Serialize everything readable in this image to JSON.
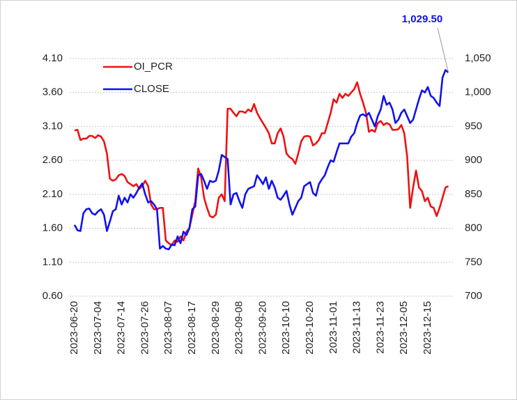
{
  "chart_data": {
    "type": "line",
    "categories": [
      "2023-06-20",
      null,
      null,
      null,
      null,
      null,
      null,
      null,
      "2023-07-04",
      null,
      null,
      null,
      null,
      null,
      null,
      null,
      "2023-07-14",
      null,
      null,
      null,
      null,
      null,
      null,
      null,
      "2023-07-26",
      null,
      null,
      null,
      null,
      null,
      null,
      null,
      "2023-08-07",
      null,
      null,
      null,
      null,
      null,
      null,
      null,
      "2023-08-17",
      null,
      null,
      null,
      null,
      null,
      null,
      null,
      "2023-08-29",
      null,
      null,
      null,
      null,
      null,
      null,
      null,
      "2023-09-08",
      null,
      null,
      null,
      null,
      null,
      null,
      null,
      "2023-09-20",
      null,
      null,
      null,
      null,
      null,
      null,
      null,
      "2023-10-10",
      null,
      null,
      null,
      null,
      null,
      null,
      null,
      "2023-10-20",
      null,
      null,
      null,
      null,
      null,
      null,
      null,
      "2023-11-01",
      null,
      null,
      null,
      null,
      null,
      null,
      null,
      "2023-11-13",
      null,
      null,
      null,
      null,
      null,
      null,
      null,
      "2023-11-23",
      null,
      null,
      null,
      null,
      null,
      null,
      null,
      "2023-12-05",
      null,
      null,
      null,
      null,
      null,
      null,
      null,
      "2023-12-15",
      null,
      null,
      null,
      null,
      null,
      null,
      null
    ],
    "series": [
      {
        "name": "OI_PCR",
        "color": "#ee1111",
        "axis": "y",
        "values": [
          3.04,
          3.05,
          2.9,
          2.92,
          2.92,
          2.96,
          2.96,
          2.93,
          2.97,
          2.95,
          2.88,
          2.7,
          2.33,
          2.3,
          2.32,
          2.38,
          2.4,
          2.37,
          2.28,
          2.25,
          2.22,
          2.25,
          2.18,
          2.22,
          2.3,
          2.22,
          1.95,
          1.88,
          1.88,
          1.9,
          1.9,
          1.42,
          1.38,
          1.35,
          1.42,
          1.4,
          1.48,
          1.42,
          1.55,
          1.6,
          1.8,
          2.0,
          2.48,
          2.35,
          2.05,
          1.9,
          1.78,
          1.76,
          1.8,
          2.05,
          2.1,
          2.0,
          3.36,
          3.36,
          3.3,
          3.25,
          3.32,
          3.32,
          3.3,
          3.35,
          3.32,
          3.43,
          3.3,
          3.22,
          3.15,
          3.08,
          3.0,
          2.85,
          2.85,
          3.0,
          3.07,
          2.95,
          2.7,
          2.65,
          2.62,
          2.55,
          2.7,
          2.88,
          2.95,
          2.96,
          2.95,
          2.82,
          2.85,
          2.9,
          3.0,
          3.0,
          3.15,
          3.3,
          3.5,
          3.45,
          3.58,
          3.52,
          3.58,
          3.55,
          3.6,
          3.65,
          3.75,
          3.58,
          3.45,
          3.3,
          3.02,
          3.05,
          3.02,
          3.15,
          3.18,
          3.12,
          3.15,
          3.13,
          3.05,
          3.05,
          3.06,
          3.12,
          3.0,
          2.65,
          1.9,
          2.2,
          2.45,
          2.2,
          2.15,
          2.0,
          2.05,
          1.92,
          1.9,
          1.78,
          1.9,
          2.05,
          2.2,
          2.22
        ]
      },
      {
        "name": "CLOSE",
        "color": "#1111ee",
        "axis": "y2",
        "values": [
          805,
          797,
          796,
          822,
          828,
          829,
          822,
          820,
          825,
          828,
          820,
          796,
          810,
          825,
          828,
          848,
          835,
          845,
          838,
          850,
          845,
          852,
          860,
          866,
          850,
          838,
          840,
          835,
          828,
          770,
          774,
          770,
          769,
          776,
          775,
          788,
          778,
          795,
          790,
          800,
          828,
          832,
          878,
          880,
          870,
          858,
          870,
          868,
          870,
          885,
          908,
          905,
          902,
          835,
          850,
          852,
          840,
          830,
          850,
          858,
          860,
          862,
          878,
          872,
          865,
          875,
          858,
          870,
          860,
          845,
          842,
          848,
          855,
          835,
          820,
          830,
          840,
          845,
          862,
          865,
          868,
          852,
          848,
          865,
          872,
          878,
          890,
          900,
          898,
          912,
          925,
          925,
          925,
          925,
          935,
          940,
          955,
          966,
          968,
          965,
          970,
          960,
          950,
          965,
          975,
          995,
          982,
          985,
          975,
          955,
          960,
          970,
          975,
          965,
          955,
          960,
          975,
          990,
          1003,
          1000,
          1008,
          995,
          992,
          985,
          980,
          1022,
          1033,
          1029.5
        ]
      }
    ],
    "ylim": [
      0.6,
      4.1
    ],
    "yticks": [
      {
        "value": 0.6,
        "label": "0.60"
      },
      {
        "value": 1.1,
        "label": "1.10"
      },
      {
        "value": 1.6,
        "label": "1.60"
      },
      {
        "value": 2.1,
        "label": "2.10"
      },
      {
        "value": 2.6,
        "label": "2.60"
      },
      {
        "value": 3.1,
        "label": "3.10"
      },
      {
        "value": 3.6,
        "label": "3.60"
      },
      {
        "value": 4.1,
        "label": "4.10"
      }
    ],
    "y2lim": [
      700,
      1050
    ],
    "y2ticks": [
      700,
      750,
      800,
      850,
      900,
      950,
      {
        "value": 1000,
        "label": "1,000"
      },
      {
        "value": 1050,
        "label": "1,050"
      }
    ],
    "grid": true,
    "legend": "top-left",
    "annotation": {
      "text": "1,029.50",
      "value": 1029.5,
      "color": "#1111ee"
    }
  }
}
